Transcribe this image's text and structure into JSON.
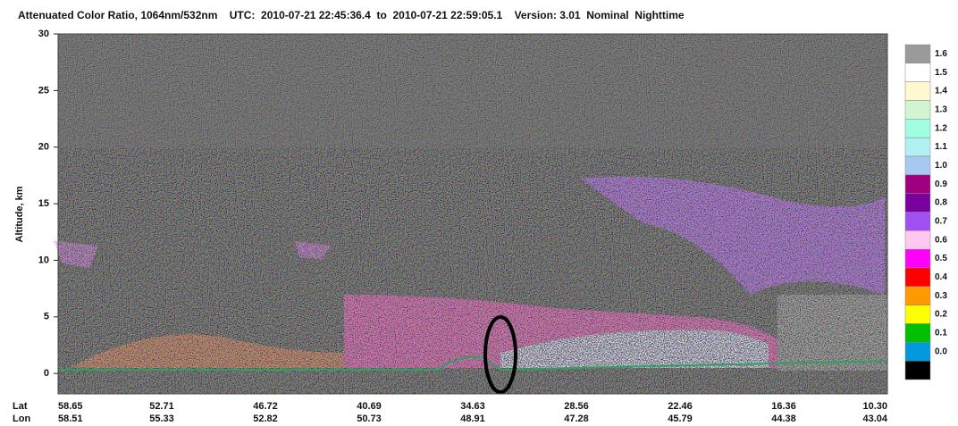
{
  "chart_data": {
    "type": "heatmap",
    "title": "Attenuated Color Ratio, 1064nm/532nm    UTC:  2010-07-21 22:45:36.4  to  2010-07-21 22:59:05.1    Version: 3.01  Nominal  Nighttime",
    "y_label": "Altitude, km",
    "ylim": [
      -1.8,
      30
    ],
    "yticks": [
      0,
      5,
      10,
      15,
      20,
      25,
      30
    ],
    "x_rows": [
      {
        "name": "Lat",
        "labels": [
          "58.65",
          "52.71",
          "46.72",
          "40.69",
          "34.63",
          "28.56",
          "22.46",
          "16.36",
          "10.30"
        ]
      },
      {
        "name": "Lon",
        "labels": [
          "58.51",
          "55.33",
          "52.82",
          "50.73",
          "48.91",
          "47.28",
          "45.79",
          "44.38",
          "43.04"
        ]
      }
    ],
    "colorbar": {
      "ticks": [
        1.6,
        1.5,
        1.4,
        1.3,
        1.2,
        1.1,
        {
          "value": 1,
          "label": "1.0"
        },
        0.9,
        0.8,
        0.7,
        0.6,
        0.5,
        0.4,
        0.3,
        0.2,
        0.1,
        {
          "value": 0,
          "label": "0.0"
        },
        null
      ],
      "colors": [
        "#9a9a9a",
        "#ffffff",
        "#fff8d0",
        "#d0f5d0",
        "#a0ffe0",
        "#b0f0f0",
        "#a8c8f0",
        "#a0007f",
        "#7a00a0",
        "#a050f0",
        "#ffc8f0",
        "#ff00ff",
        "#ff0000",
        "#ff9900",
        "#ffff00",
        "#00c000",
        "#0099dd",
        "#000000"
      ]
    }
  }
}
